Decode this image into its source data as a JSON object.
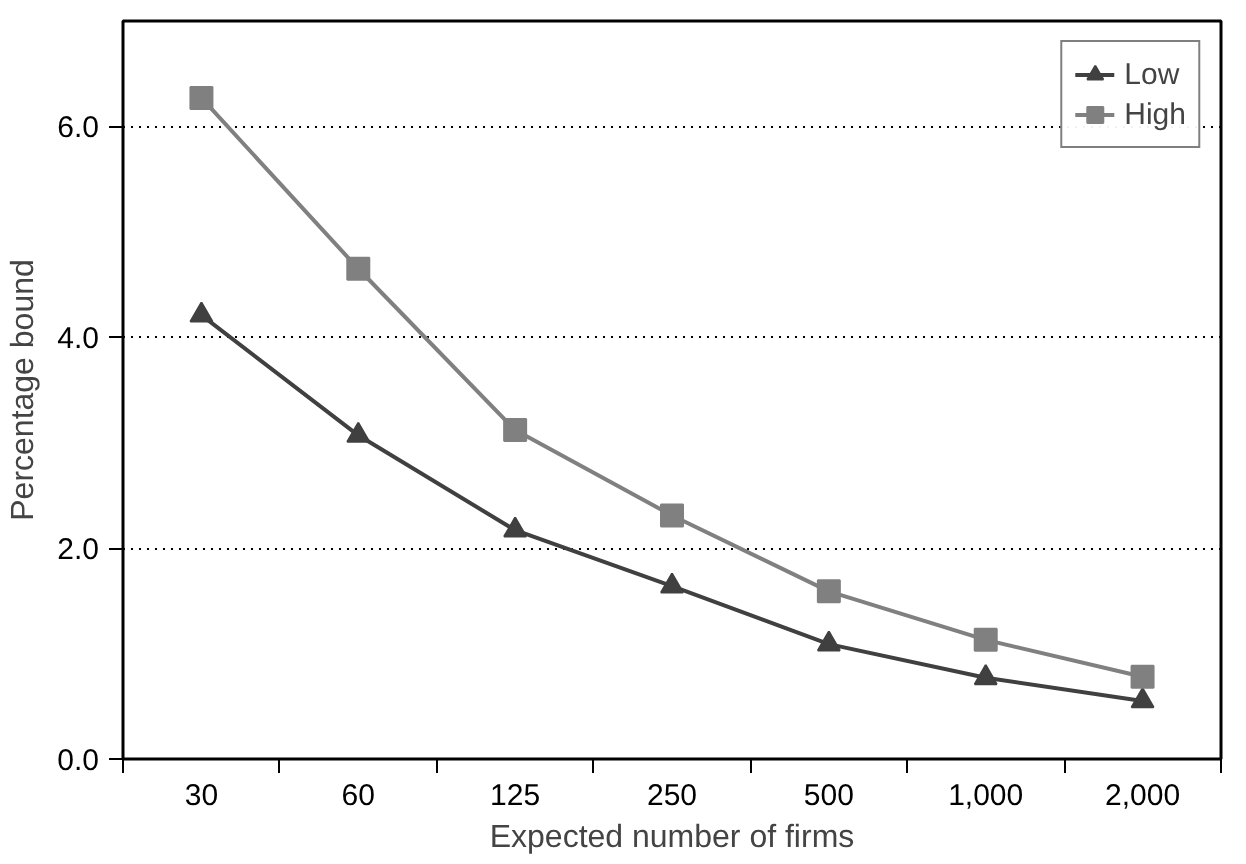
{
  "chart_data": {
    "type": "line",
    "xlabel": "Expected number of firms",
    "ylabel": "Percentage bound",
    "categories": [
      "30",
      "60",
      "125",
      "250",
      "500",
      "1,000",
      "2,000"
    ],
    "series": [
      {
        "name": "Low",
        "color": "#404040",
        "marker": "triangle",
        "values": [
          4.21,
          3.07,
          2.17,
          1.64,
          1.09,
          0.77,
          0.55
        ]
      },
      {
        "name": "High",
        "color": "#808080",
        "marker": "square",
        "values": [
          6.27,
          4.65,
          3.12,
          2.31,
          1.59,
          1.13,
          0.78
        ]
      }
    ],
    "ylim": [
      0,
      7
    ],
    "yticks": [
      {
        "value": 0,
        "label": "0.0"
      },
      {
        "value": 2,
        "label": "2.0"
      },
      {
        "value": 4,
        "label": "4.0"
      },
      {
        "value": 6,
        "label": "6.0"
      }
    ],
    "grid": "y",
    "legend": "top right",
    "line_style": "solid"
  }
}
